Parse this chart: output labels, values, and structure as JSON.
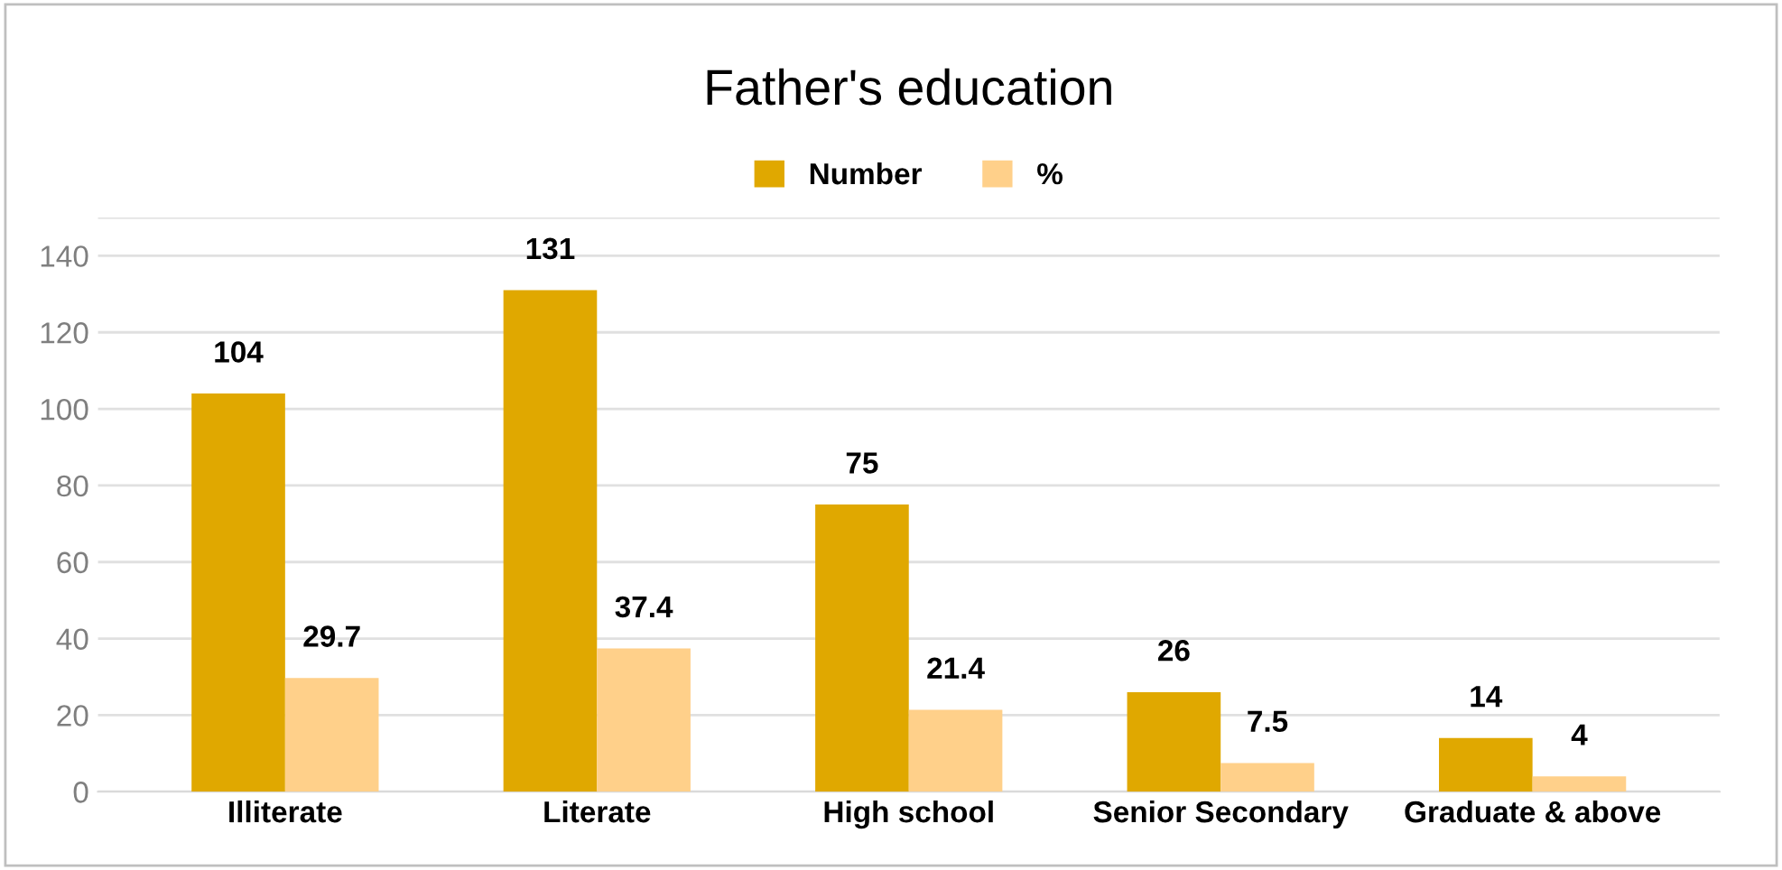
{
  "chart_data": {
    "type": "bar",
    "title": "Father's education",
    "categories": [
      "Illiterate",
      "Literate",
      "High school",
      "Senior Secondary",
      "Graduate & above"
    ],
    "series": [
      {
        "name": "Number",
        "color": "#e0a800",
        "values": [
          104,
          131,
          75,
          26,
          14
        ]
      },
      {
        "name": "%",
        "color": "#ffd08a",
        "values": [
          29.7,
          37.4,
          21.4,
          7.5,
          4
        ]
      }
    ],
    "ylim": [
      0,
      150
    ],
    "yticks": [
      0,
      20,
      40,
      60,
      80,
      100,
      120,
      140,
      {
        "value": 150,
        "label": null
      }
    ],
    "grid": "y",
    "legend": "top",
    "data_labels": true
  }
}
